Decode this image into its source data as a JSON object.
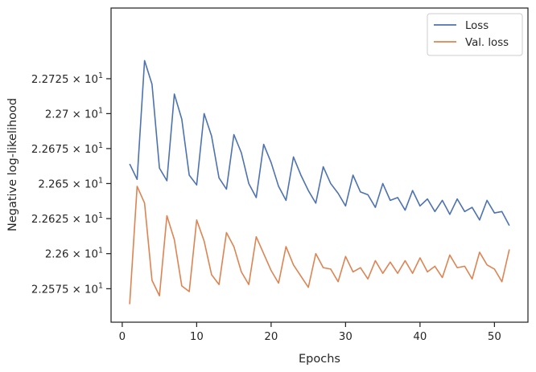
{
  "chart_data": {
    "type": "line",
    "xlabel": "Epochs",
    "ylabel": "Negative log-likelihood",
    "xlim": [
      -1.5,
      54.5
    ],
    "ylim": [
      22.5512,
      22.7757
    ],
    "yscale": "log",
    "grid": false,
    "legend_position": "top-right",
    "x_ticks": [
      0,
      10,
      20,
      30,
      40,
      50
    ],
    "y_ticks": [
      {
        "value": 22.575,
        "mantissa": "2.2575",
        "exponent": "1"
      },
      {
        "value": 22.6,
        "mantissa": "2.26",
        "exponent": "1"
      },
      {
        "value": 22.625,
        "mantissa": "2.2625",
        "exponent": "1"
      },
      {
        "value": 22.65,
        "mantissa": "2.265",
        "exponent": "1"
      },
      {
        "value": 22.675,
        "mantissa": "2.2675",
        "exponent": "1"
      },
      {
        "value": 22.7,
        "mantissa": "2.27",
        "exponent": "1"
      },
      {
        "value": 22.725,
        "mantissa": "2.2725",
        "exponent": "1"
      }
    ],
    "x": [
      1,
      2,
      3,
      4,
      5,
      6,
      7,
      8,
      9,
      10,
      11,
      12,
      13,
      14,
      15,
      16,
      17,
      18,
      19,
      20,
      21,
      22,
      23,
      24,
      25,
      26,
      27,
      28,
      29,
      30,
      31,
      32,
      33,
      34,
      35,
      36,
      37,
      38,
      39,
      40,
      41,
      42,
      43,
      44,
      45,
      46,
      47,
      48,
      49,
      50,
      51,
      52
    ],
    "series": [
      {
        "name": "Loss",
        "color": "#4c72b0",
        "values": [
          22.664,
          22.653,
          22.738,
          22.721,
          22.661,
          22.652,
          22.714,
          22.696,
          22.656,
          22.649,
          22.7,
          22.684,
          22.654,
          22.646,
          22.685,
          22.672,
          22.65,
          22.64,
          22.678,
          22.665,
          22.648,
          22.638,
          22.669,
          22.656,
          22.645,
          22.636,
          22.662,
          22.65,
          22.643,
          22.634,
          22.656,
          22.644,
          22.642,
          22.633,
          22.65,
          22.638,
          22.64,
          22.631,
          22.645,
          22.634,
          22.639,
          22.63,
          22.638,
          22.628,
          22.639,
          22.63,
          22.633,
          22.624,
          22.638,
          22.629,
          22.63,
          22.62
        ]
      },
      {
        "name": "Val. loss",
        "color": "#dd8452",
        "values": [
          22.564,
          22.648,
          22.636,
          22.581,
          22.57,
          22.627,
          22.61,
          22.577,
          22.573,
          22.624,
          22.609,
          22.585,
          22.578,
          22.615,
          22.605,
          22.587,
          22.578,
          22.612,
          22.6,
          22.588,
          22.579,
          22.605,
          22.592,
          22.584,
          22.576,
          22.6,
          22.59,
          22.589,
          22.58,
          22.598,
          22.587,
          22.59,
          22.582,
          22.595,
          22.586,
          22.594,
          22.586,
          22.595,
          22.586,
          22.597,
          22.587,
          22.591,
          22.583,
          22.599,
          22.59,
          22.591,
          22.582,
          22.601,
          22.592,
          22.589,
          22.58,
          22.603
        ]
      }
    ]
  }
}
